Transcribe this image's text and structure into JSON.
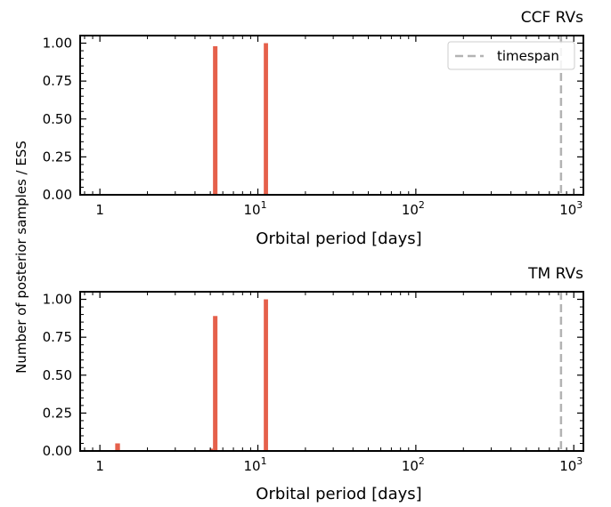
{
  "figure": {
    "ylabel": "Number of posterior samples / ESS"
  },
  "chart_data": [
    {
      "type": "bar",
      "title": "CCF RVs",
      "xlabel": "Orbital period [days]",
      "ylabel": "Number of posterior samples / ESS",
      "xscale": "log",
      "xlim": [
        0.75,
        1150
      ],
      "ylim": [
        0,
        1.05
      ],
      "xticks": [
        {
          "value": 1,
          "label": "1"
        },
        {
          "value": 10,
          "base": "10",
          "exp": "1"
        },
        {
          "value": 100,
          "base": "10",
          "exp": "2"
        },
        {
          "value": 1000,
          "base": "10",
          "exp": "3"
        }
      ],
      "yticks": [
        "0.00",
        "0.25",
        "0.50",
        "0.75",
        "1.00"
      ],
      "bar_color": "#e5604b",
      "series": [
        {
          "bars": [
            {
              "x0": 5.2,
              "x1": 5.55,
              "value": 0.98
            },
            {
              "x0": 10.9,
              "x1": 11.6,
              "value": 1.0
            }
          ]
        }
      ],
      "vline": {
        "x": 830,
        "color": "#b3b3b3",
        "style": "dashed",
        "label": "timespan"
      },
      "legend": {
        "position": "top-right",
        "entries": [
          "timespan"
        ]
      },
      "grid": false
    },
    {
      "type": "bar",
      "title": "TM RVs",
      "xlabel": "Orbital period [days]",
      "ylabel": "Number of posterior samples / ESS",
      "xscale": "log",
      "xlim": [
        0.75,
        1150
      ],
      "ylim": [
        0,
        1.05
      ],
      "xticks": [
        {
          "value": 1,
          "label": "1"
        },
        {
          "value": 10,
          "base": "10",
          "exp": "1"
        },
        {
          "value": 100,
          "base": "10",
          "exp": "2"
        },
        {
          "value": 1000,
          "base": "10",
          "exp": "3"
        }
      ],
      "yticks": [
        "0.00",
        "0.25",
        "0.50",
        "0.75",
        "1.00"
      ],
      "bar_color": "#e5604b",
      "series": [
        {
          "bars": [
            {
              "x0": 1.25,
              "x1": 1.34,
              "value": 0.05
            },
            {
              "x0": 4.95,
              "x1": 5.2,
              "value": 0.015
            },
            {
              "x0": 5.2,
              "x1": 5.55,
              "value": 0.89
            },
            {
              "x0": 10.9,
              "x1": 11.6,
              "value": 1.0
            }
          ]
        }
      ],
      "vline": {
        "x": 830,
        "color": "#b3b3b3",
        "style": "dashed"
      },
      "grid": false
    }
  ]
}
